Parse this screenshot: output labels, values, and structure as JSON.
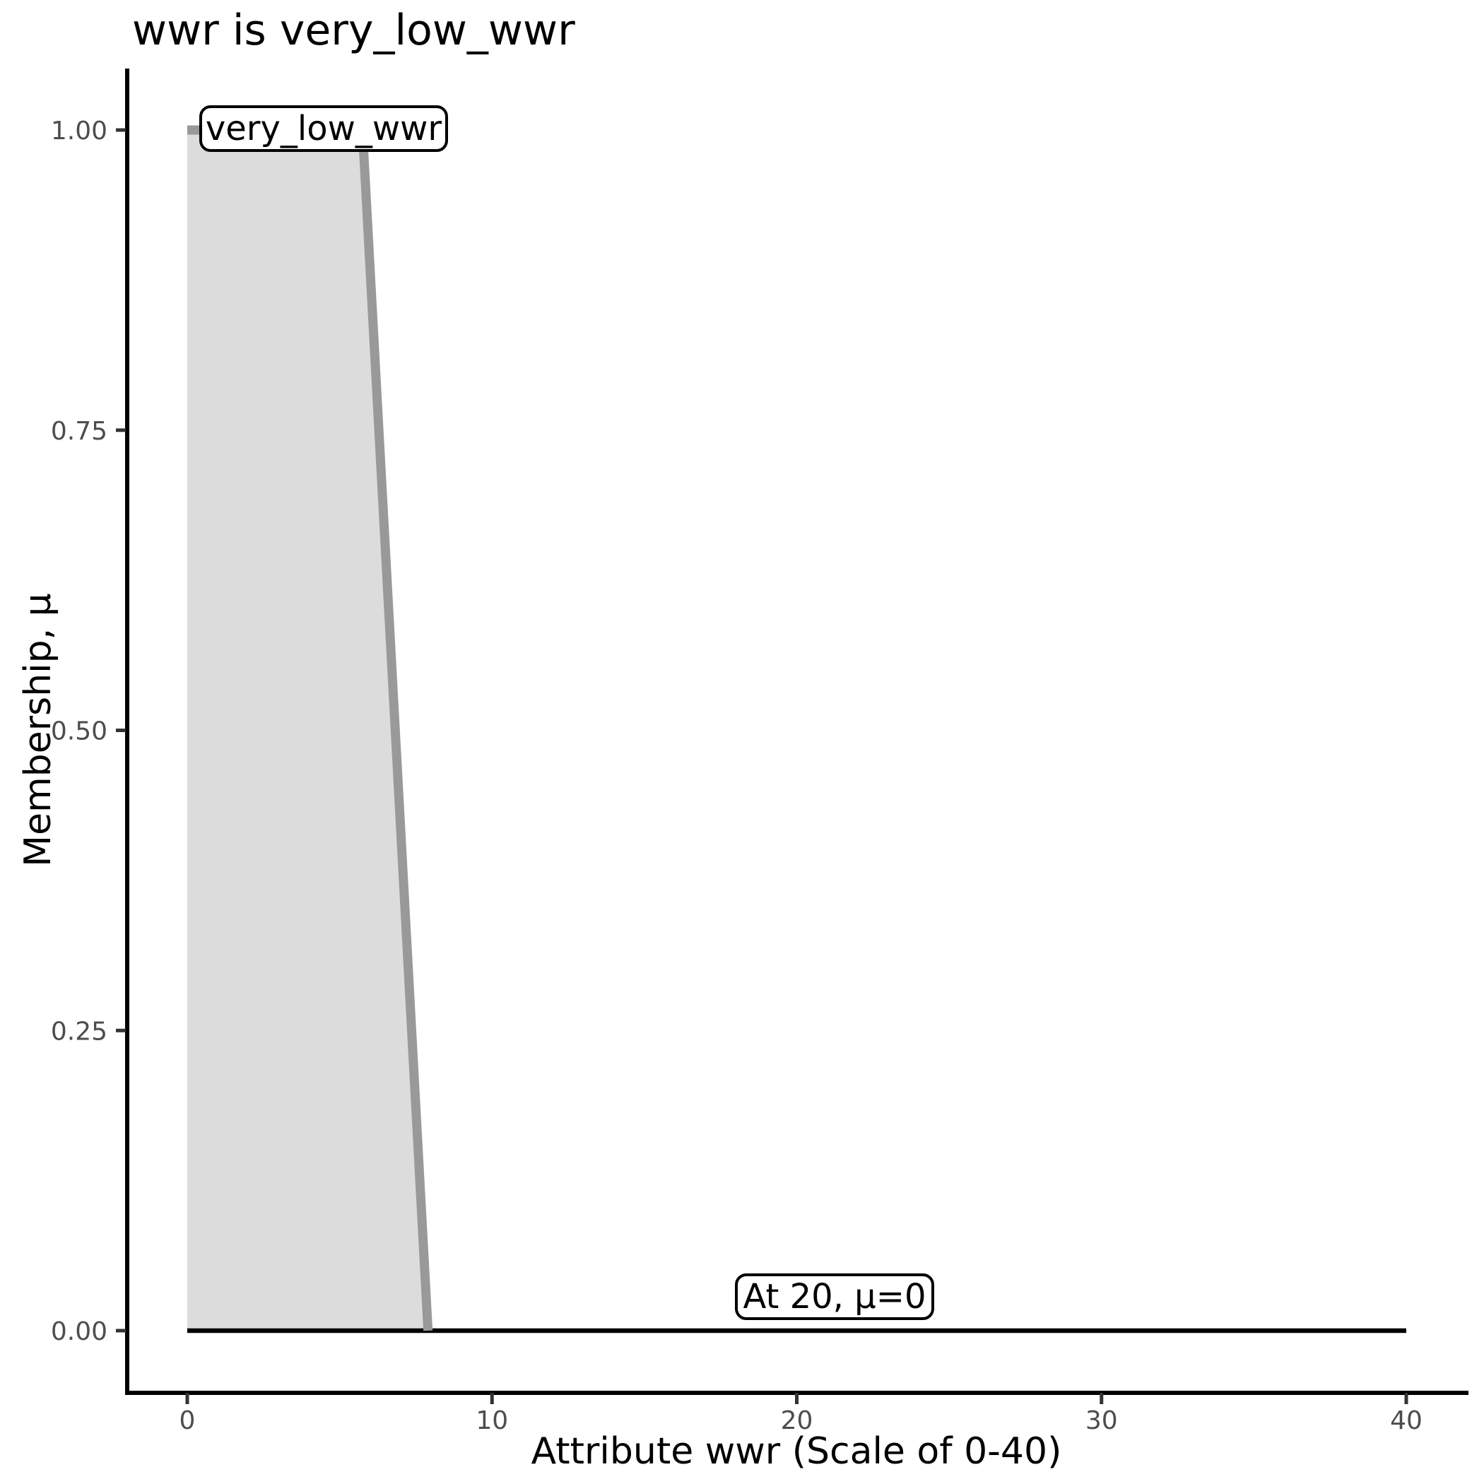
{
  "title": {
    "text": "wwr is very_low_wwr"
  },
  "colors": {
    "background": "#ffffff",
    "fill": "#dcdcdc",
    "curve_line": "#999999",
    "zero_line": "#000000",
    "axis_line": "#000000",
    "tick_mark": "#333333",
    "tick_label": "#4d4d4d",
    "text": "#000000"
  },
  "chart_data": {
    "type": "area",
    "title": "wwr is very_low_wwr",
    "xlabel": "Attribute wwr (Scale of 0-40)",
    "ylabel": "Membership, μ",
    "xlim": [
      0,
      40
    ],
    "ylim": [
      0,
      1
    ],
    "grid": false,
    "legend": false,
    "xticks": {
      "values": [
        0,
        10,
        20,
        30,
        40
      ],
      "labels": [
        "0",
        "10",
        "20",
        "30",
        "40"
      ]
    },
    "yticks": {
      "values": [
        0,
        0.25,
        0.5,
        0.75,
        1.0
      ],
      "labels": [
        "0.00",
        "0.25",
        "0.50",
        "0.75",
        "1.00"
      ]
    },
    "fuzzy_set": {
      "name": "very_low_wwr",
      "shape": "trapezoid",
      "curve_points": [
        [
          0,
          1
        ],
        [
          5.75,
          1
        ],
        [
          7.9,
          0
        ]
      ],
      "membership_at_20": 0
    },
    "zero_segment": {
      "points": [
        [
          0,
          0
        ],
        [
          40,
          0
        ]
      ]
    },
    "annotations": [
      {
        "text": "very_low_wwr",
        "x": 4.5,
        "mu": 1.0
      },
      {
        "text": "At 20, μ=0",
        "x": 20,
        "mu": 0.04
      }
    ]
  }
}
